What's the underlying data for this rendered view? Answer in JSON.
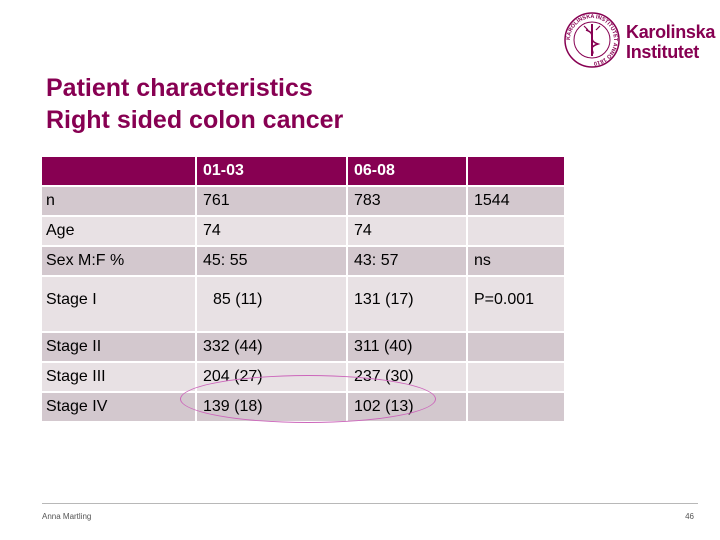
{
  "slide": {
    "title_line1": "Patient characteristics",
    "title_line2": "Right sided colon cancer"
  },
  "logo": {
    "line1": "Karolinska",
    "line2": "Institutet",
    "seal_text": "KAROLINSKA INSTITUTET ANNO 1810"
  },
  "table": {
    "header": [
      "",
      "01-03",
      "06-08",
      ""
    ],
    "rows": [
      [
        "n",
        "761",
        "783",
        "1544"
      ],
      [
        "Age",
        "74",
        "74",
        ""
      ],
      [
        "Sex M:F %",
        "45: 55",
        "43: 57",
        "ns"
      ],
      [
        "Stage I",
        "85 (11)",
        "131 (17)",
        "P=0.001"
      ],
      [
        "Stage II",
        "332 (44)",
        "311 (40)",
        ""
      ],
      [
        "Stage III",
        "204 (27)",
        "237 (30)",
        ""
      ],
      [
        "Stage IV",
        "139 (18)",
        "102 (13)",
        ""
      ]
    ]
  },
  "footer": {
    "author": "Anna Martling",
    "page_number": "46"
  },
  "colors": {
    "brand": "#870052",
    "row_light": "#e8e1e4",
    "row_dark": "#d3c8ce",
    "highlight_ellipse": "#cc66bb"
  }
}
